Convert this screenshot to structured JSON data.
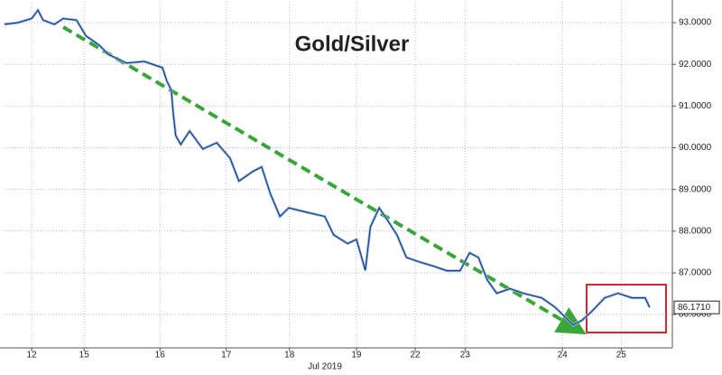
{
  "chart_data": {
    "type": "line",
    "title": "Gold/Silver",
    "x_axis_label": "Jul 2019",
    "x": [
      0,
      0.21,
      0.43,
      0.53,
      0.61,
      0.79,
      0.93,
      1.14,
      1.29,
      1.5,
      1.64,
      1.93,
      2.21,
      2.5,
      2.57,
      2.64,
      2.67,
      2.71,
      2.79,
      2.93,
      3.14,
      3.36,
      3.57,
      3.71,
      3.93,
      4.07,
      4.21,
      4.36,
      4.5,
      4.79,
      5.07,
      5.21,
      5.43,
      5.57,
      5.71,
      5.79,
      5.93,
      6.07,
      6.21,
      6.36,
      6.57,
      6.79,
      7,
      7.21,
      7.36,
      7.5,
      7.64,
      7.79,
      8,
      8.21,
      8.5,
      8.71,
      8.86,
      9,
      9.14,
      9.29,
      9.5,
      9.71,
      9.93,
      10.14,
      10.21
    ],
    "series": [
      {
        "color": "#1c3a78",
        "values": [
          92.96,
          93.0,
          93.1,
          93.3,
          93.06,
          92.96,
          93.1,
          93.06,
          92.68,
          92.46,
          92.24,
          92.03,
          92.07,
          91.92,
          91.6,
          91.38,
          90.84,
          90.29,
          90.08,
          90.4,
          89.97,
          90.12,
          89.75,
          89.2,
          89.43,
          89.54,
          88.89,
          88.35,
          88.56,
          88.45,
          88.35,
          87.91,
          87.7,
          87.8,
          87.06,
          88.1,
          88.56,
          88.24,
          87.91,
          87.37,
          87.26,
          87.16,
          87.05,
          87.05,
          87.48,
          87.37,
          86.83,
          86.51,
          86.62,
          86.51,
          86.4,
          86.18,
          85.96,
          85.75,
          85.86,
          86.07,
          86.4,
          86.51,
          86.4,
          86.4,
          86.171
        ]
      }
    ],
    "last_value": {
      "value": 86.171,
      "label": "86.1710"
    },
    "xlim": [
      0,
      10.57
    ],
    "xticks": [
      {
        "value": 0.43,
        "label": "12"
      },
      {
        "value": 1.26,
        "label": "15"
      },
      {
        "value": 2.46,
        "label": "16"
      },
      {
        "value": 3.51,
        "label": "17"
      },
      {
        "value": 4.51,
        "label": "18"
      },
      {
        "value": 5.57,
        "label": "19"
      },
      {
        "value": 6.5,
        "label": "22"
      },
      {
        "value": 7.29,
        "label": "23"
      },
      {
        "value": 8.83,
        "label": "24"
      },
      {
        "value": 9.76,
        "label": "25"
      }
    ],
    "ylim": [
      85.2,
      93.5
    ],
    "yticks": [
      {
        "value": 86,
        "label": "86.0000"
      },
      {
        "value": 87,
        "label": "87.0000"
      },
      {
        "value": 88,
        "label": "88.0000"
      },
      {
        "value": 89,
        "label": "89.0000"
      },
      {
        "value": 90,
        "label": "90.0000"
      },
      {
        "value": 91,
        "label": "91.0000"
      },
      {
        "value": 92,
        "label": "92.0000"
      },
      {
        "value": 93,
        "label": "93.0000"
      }
    ],
    "grid": true
  }
}
